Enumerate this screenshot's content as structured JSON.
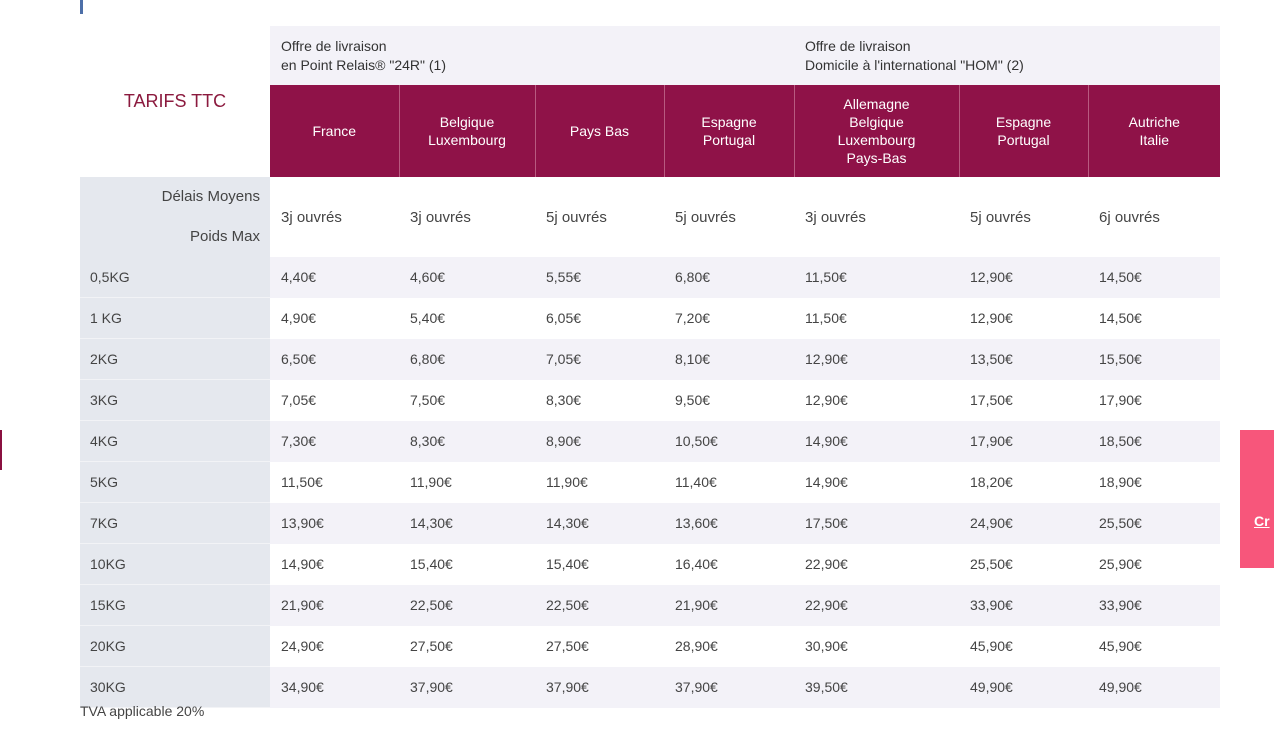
{
  "table": {
    "title": "TARIFS TTC",
    "offer_relais": [
      "Offre de livraison",
      "en Point Relais® \"24R\" (1)"
    ],
    "offer_home": [
      "Offre de livraison",
      "Domicile à l'international \"HOM\" (2)"
    ],
    "destinations": [
      [
        "France"
      ],
      [
        "Belgique",
        "Luxembourg"
      ],
      [
        "Pays Bas"
      ],
      [
        "Espagne",
        "Portugal"
      ],
      [
        "Allemagne",
        "Belgique",
        "Luxembourg",
        "Pays-Bas"
      ],
      [
        "Espagne",
        "Portugal"
      ],
      [
        "Autriche",
        "Italie"
      ]
    ],
    "delay_label": "Délais Moyens",
    "weight_label": "Poids Max",
    "delays": [
      "3j ouvrés",
      "3j ouvrés",
      "5j ouvrés",
      "5j ouvrés",
      "3j ouvrés",
      "5j ouvrés",
      "6j ouvrés"
    ],
    "rows": [
      {
        "weight": "0,5KG",
        "prices": [
          "4,40€",
          "4,60€",
          "5,55€",
          "6,80€",
          "11,50€",
          "12,90€",
          "14,50€"
        ]
      },
      {
        "weight": "1 KG",
        "prices": [
          "4,90€",
          "5,40€",
          "6,05€",
          "7,20€",
          "11,50€",
          "12,90€",
          "14,50€"
        ]
      },
      {
        "weight": "2KG",
        "prices": [
          "6,50€",
          "6,80€",
          "7,05€",
          "8,10€",
          "12,90€",
          "13,50€",
          "15,50€"
        ]
      },
      {
        "weight": "3KG",
        "prices": [
          "7,05€",
          "7,50€",
          "8,30€",
          "9,50€",
          "12,90€",
          "17,50€",
          "17,90€"
        ]
      },
      {
        "weight": "4KG",
        "prices": [
          "7,30€",
          "8,30€",
          "8,90€",
          "10,50€",
          "14,90€",
          "17,90€",
          "18,50€"
        ]
      },
      {
        "weight": "5KG",
        "prices": [
          "11,50€",
          "11,90€",
          "11,90€",
          "11,40€",
          "14,90€",
          "18,20€",
          "18,90€"
        ]
      },
      {
        "weight": "7KG",
        "prices": [
          "13,90€",
          "14,30€",
          "14,30€",
          "13,60€",
          "17,50€",
          "24,90€",
          "25,50€"
        ]
      },
      {
        "weight": "10KG",
        "prices": [
          "14,90€",
          "15,40€",
          "15,40€",
          "16,40€",
          "22,90€",
          "25,50€",
          "25,90€"
        ]
      },
      {
        "weight": "15KG",
        "prices": [
          "21,90€",
          "22,50€",
          "22,50€",
          "21,90€",
          "22,90€",
          "33,90€",
          "33,90€"
        ]
      },
      {
        "weight": "20KG",
        "prices": [
          "24,90€",
          "27,50€",
          "27,50€",
          "28,90€",
          "30,90€",
          "45,90€",
          "45,90€"
        ]
      },
      {
        "weight": "30KG",
        "prices": [
          "34,90€",
          "37,90€",
          "37,90€",
          "37,90€",
          "39,50€",
          "49,90€",
          "49,90€"
        ]
      }
    ]
  },
  "footnote": "TVA applicable 20%",
  "side_tab_text": "Cr",
  "colors": {
    "header_bg": "#8f1248",
    "title": "#8b1a3e",
    "side_tab": "#f7567b"
  }
}
